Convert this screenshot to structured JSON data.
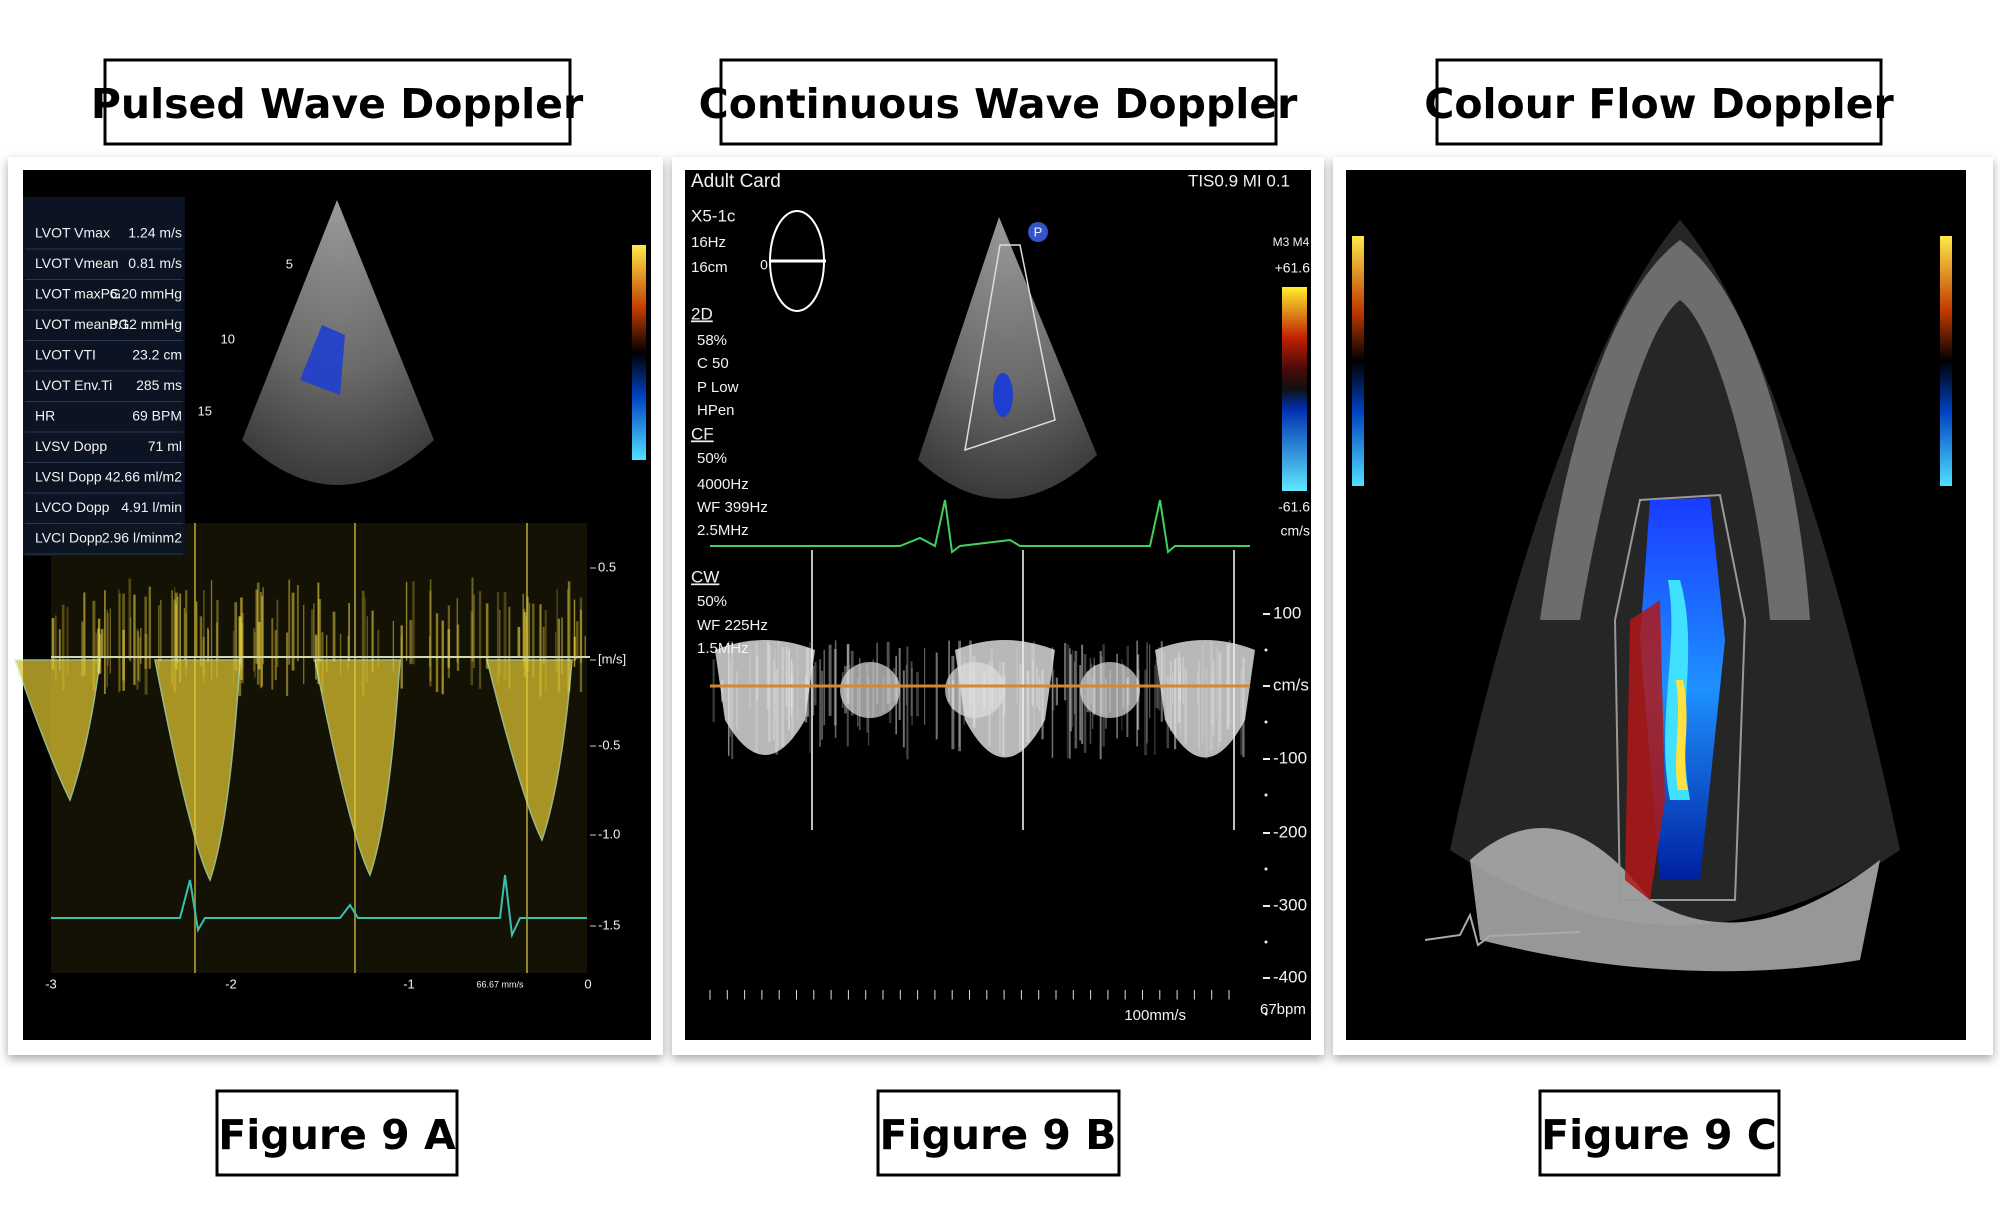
{
  "panels": [
    {
      "title": "Pulsed Wave Doppler",
      "caption": "Figure 9 A",
      "measurements": [
        [
          "LVOT Vmax",
          "1.24 m/s"
        ],
        [
          "LVOT Vmean",
          "0.81 m/s"
        ],
        [
          "LVOT maxPG",
          "6.20 mmHg"
        ],
        [
          "LVOT meanPG",
          "3.12 mmHg"
        ],
        [
          "LVOT VTI",
          "23.2 cm"
        ],
        [
          "LVOT Env.Ti",
          "285 ms"
        ],
        [
          "HR",
          "69 BPM"
        ],
        [
          "LVSV Dopp",
          "71 ml"
        ],
        [
          "LVSI Dopp",
          "42.66 ml/m2"
        ],
        [
          "LVCO Dopp",
          "4.91 l/min"
        ],
        [
          "LVCI Dopp",
          "2.96 l/minm2"
        ]
      ],
      "depth_labels": [
        "5",
        "10",
        "15"
      ],
      "velocity_labels": [
        "0.5",
        "[m/s]",
        "-0.5",
        "-1.0",
        "-1.5"
      ],
      "time_labels": [
        "-3",
        "-2",
        "-1",
        "0"
      ],
      "sweep": "66.67 mm/s"
    },
    {
      "title": "Continuous Wave Doppler",
      "caption": "Figure 9 B",
      "header": "Adult Card",
      "indices": "TIS0.9  MI 0.1",
      "settings": [
        "X5-1c",
        "16Hz",
        "16cm",
        "2D",
        "58%",
        "C 50",
        "P Low",
        "HPen",
        "CF",
        "50%",
        "4000Hz",
        "WF 399Hz",
        "2.5MHz",
        "CW",
        "50%",
        "WF 225Hz",
        "1.5MHz"
      ],
      "angle": "0",
      "probe_marker": "P",
      "color_map": "M3 M4",
      "color_scale": [
        "+61.6",
        "-61.6",
        "cm/s"
      ],
      "velocity_labels": [
        "100",
        "cm/s",
        "-100",
        "-200",
        "-300",
        "-400"
      ],
      "sweep": "100mm/s",
      "heart_rate": "67bpm"
    },
    {
      "title": "Colour Flow Doppler",
      "caption": "Figure 9 C"
    }
  ]
}
